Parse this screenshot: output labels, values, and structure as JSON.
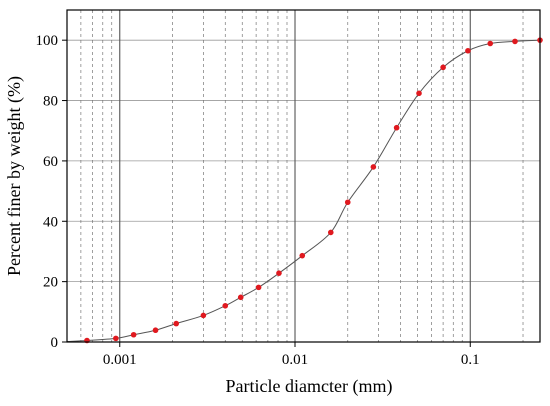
{
  "chart_data": {
    "type": "scatter",
    "xlabel": "Particle diamcter (mm)",
    "ylabel": "Percent finer by weight (%)",
    "x_scale": "log",
    "xlim": [
      0.0005,
      0.25
    ],
    "ylim": [
      0,
      110
    ],
    "x_ticks": [
      {
        "value": 0.001,
        "label": "0.001"
      },
      {
        "value": 0.01,
        "label": "0.01"
      },
      {
        "value": 0.1,
        "label": "0.1"
      }
    ],
    "y_ticks": [
      {
        "value": 0,
        "label": "0"
      },
      {
        "value": 20,
        "label": "20"
      },
      {
        "value": 40,
        "label": "40"
      },
      {
        "value": 60,
        "label": "60"
      },
      {
        "value": 80,
        "label": "80"
      },
      {
        "value": 100,
        "label": "100"
      }
    ],
    "grid": "vertical dashed at log minor ticks, solid at decades; horizontal solid at y ticks",
    "series": [
      {
        "marker_color": "#e0191f",
        "line_color": "#555555",
        "points": [
          {
            "x": 0.00065,
            "y": 0.5
          },
          {
            "x": 0.00095,
            "y": 1.2
          },
          {
            "x": 0.0012,
            "y": 2.4
          },
          {
            "x": 0.0016,
            "y": 3.9
          },
          {
            "x": 0.0021,
            "y": 6.1
          },
          {
            "x": 0.003,
            "y": 8.8
          },
          {
            "x": 0.004,
            "y": 12.0
          },
          {
            "x": 0.0049,
            "y": 14.8
          },
          {
            "x": 0.0062,
            "y": 18.1
          },
          {
            "x": 0.0081,
            "y": 22.8
          },
          {
            "x": 0.011,
            "y": 28.6
          },
          {
            "x": 0.016,
            "y": 36.3
          },
          {
            "x": 0.02,
            "y": 46.3
          },
          {
            "x": 0.028,
            "y": 58.0
          },
          {
            "x": 0.038,
            "y": 71.0
          },
          {
            "x": 0.051,
            "y": 82.4
          },
          {
            "x": 0.07,
            "y": 91.0
          },
          {
            "x": 0.097,
            "y": 96.5
          },
          {
            "x": 0.13,
            "y": 98.9
          },
          {
            "x": 0.18,
            "y": 99.6
          },
          {
            "x": 0.25,
            "y": 100.0
          }
        ]
      }
    ]
  }
}
